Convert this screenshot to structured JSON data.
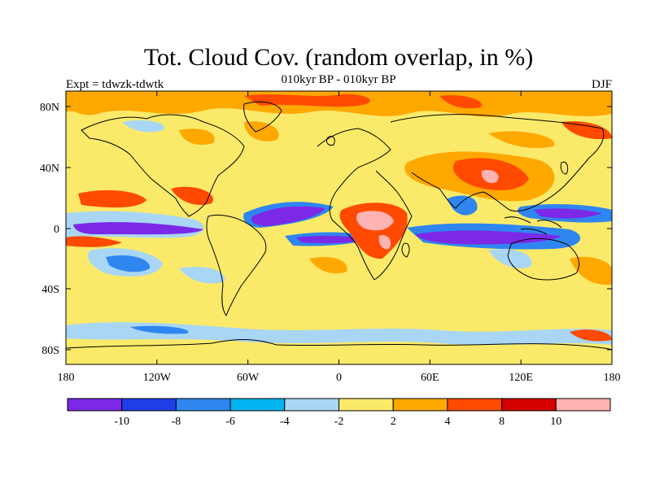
{
  "title": "Tot. Cloud Cov. (random overlap, in %)",
  "subtitle_center": "010kyr BP - 010kyr BP",
  "subtitle_left": "Expt = tdwzk-tdwtk",
  "subtitle_right": "DJF",
  "x_ticks": [
    "180",
    "120W",
    "60W",
    "0",
    "60E",
    "120E",
    "180"
  ],
  "y_ticks": [
    "80N",
    "40N",
    "0",
    "40S",
    "80S"
  ],
  "colorbar": {
    "colors": [
      "#7b29e6",
      "#1e3fe8",
      "#2f86f0",
      "#00b4f0",
      "#a9d6f5",
      "#fbea6a",
      "#ffa800",
      "#ff4a00",
      "#d40000",
      "#ffb3b3"
    ],
    "labels": [
      "-10",
      "-8",
      "-6",
      "-4",
      "-2",
      "2",
      "4",
      "8",
      "10"
    ]
  }
}
